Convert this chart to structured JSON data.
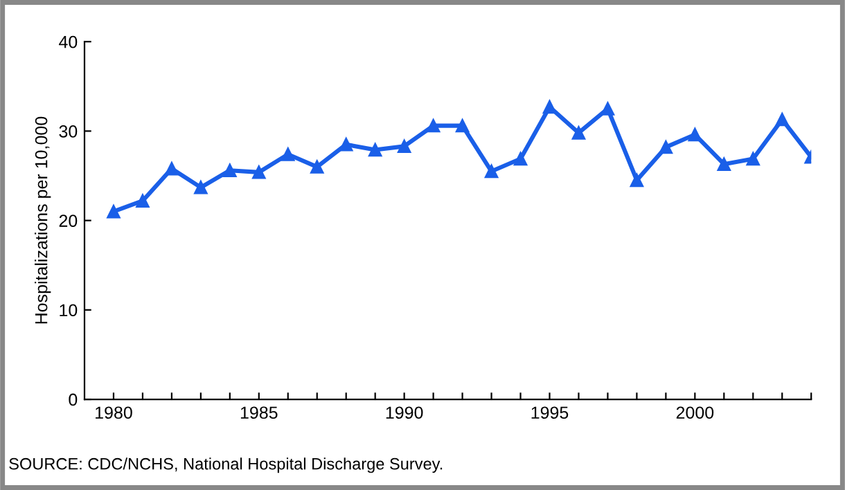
{
  "chart_data": {
    "type": "line",
    "ylabel": "Hospitalizations per 10,000",
    "x": [
      1980,
      1981,
      1982,
      1983,
      1984,
      1985,
      1986,
      1987,
      1988,
      1989,
      1990,
      1991,
      1992,
      1993,
      1994,
      1995,
      1996,
      1997,
      1998,
      1999,
      2000,
      2001,
      2002,
      2003,
      2004
    ],
    "series": [
      {
        "color": "#1a5fe8",
        "values": [
          21.0,
          22.2,
          25.8,
          23.7,
          25.6,
          25.4,
          27.4,
          26.0,
          28.5,
          27.9,
          28.3,
          30.6,
          30.6,
          25.5,
          26.9,
          32.7,
          29.8,
          32.5,
          24.5,
          28.2,
          29.6,
          26.3,
          26.9,
          31.3,
          27.1
        ]
      }
    ],
    "xlim": [
      1979,
      2004
    ],
    "ylim": [
      0,
      40
    ],
    "yticks": [
      0,
      10,
      20,
      30,
      40
    ],
    "xticks": [
      1980,
      {
        "value": 1981,
        "label": null
      },
      {
        "value": 1982,
        "label": null
      },
      {
        "value": 1983,
        "label": null
      },
      {
        "value": 1984,
        "label": null
      },
      1985,
      {
        "value": 1986,
        "label": null
      },
      {
        "value": 1987,
        "label": null
      },
      {
        "value": 1988,
        "label": null
      },
      {
        "value": 1989,
        "label": null
      },
      1990,
      {
        "value": 1991,
        "label": null
      },
      {
        "value": 1992,
        "label": null
      },
      {
        "value": 1993,
        "label": null
      },
      {
        "value": 1994,
        "label": null
      },
      1995,
      {
        "value": 1996,
        "label": null
      },
      {
        "value": 1997,
        "label": null
      },
      {
        "value": 1998,
        "label": null
      },
      {
        "value": 1999,
        "label": null
      },
      2000,
      {
        "value": 2001,
        "label": null
      },
      {
        "value": 2002,
        "label": null
      },
      {
        "value": 2003,
        "label": null
      },
      {
        "value": 2004,
        "label": null
      }
    ],
    "marker": "triangle",
    "line_style": "solid",
    "grid": false,
    "legend": false,
    "annotations": [
      "SOURCE: CDC/NCHS, National Hospital Discharge Survey."
    ]
  }
}
